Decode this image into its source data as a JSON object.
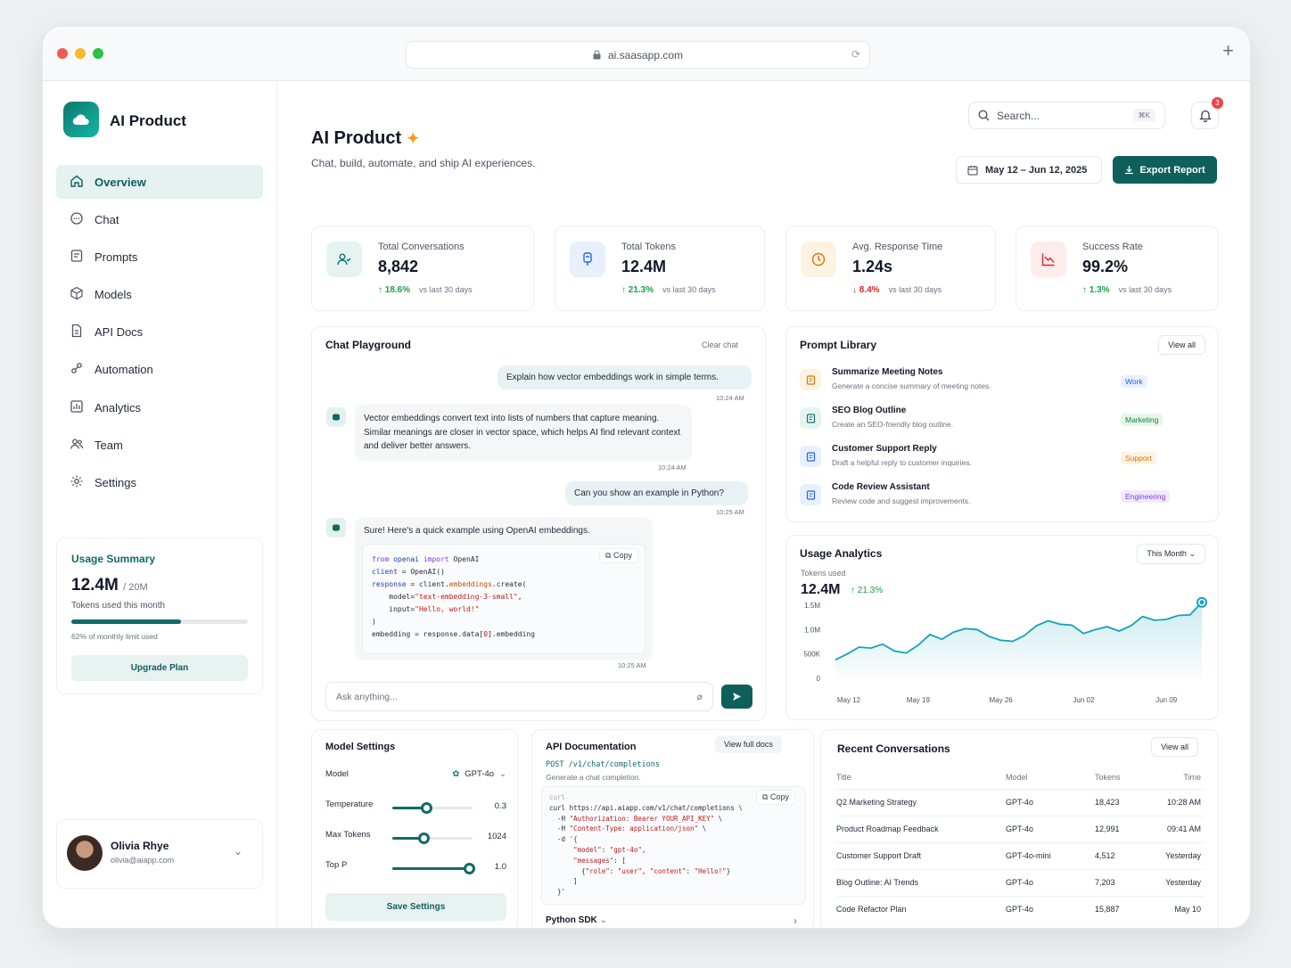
{
  "browser": {
    "url": "ai.saasapp.com"
  },
  "sidebar": {
    "brand": "AI Product",
    "items": [
      {
        "label": "Overview",
        "icon": "home-icon"
      },
      {
        "label": "Chat",
        "icon": "chat-icon"
      },
      {
        "label": "Prompts",
        "icon": "prompt-icon"
      },
      {
        "label": "Models",
        "icon": "cube-icon"
      },
      {
        "label": "API Docs",
        "icon": "doc-icon"
      },
      {
        "label": "Automation",
        "icon": "automation-icon"
      },
      {
        "label": "Analytics",
        "icon": "chart-icon"
      },
      {
        "label": "Team",
        "icon": "team-icon"
      },
      {
        "label": "Settings",
        "icon": "gear-icon"
      }
    ],
    "usage": {
      "title": "Usage Summary",
      "value": "12.4M",
      "limit": "/ 20M",
      "subtitle": "Tokens used this month",
      "progress": 0.62,
      "pct_text": "62% of monthly limit used",
      "button": "Upgrade Plan"
    },
    "user": {
      "name": "Olivia Rhye",
      "email": "olivia@aiapp.com"
    }
  },
  "header": {
    "title": "AI Product",
    "subtitle": "Chat, build, automate, and ship AI experiences.",
    "search_placeholder": "Search...",
    "search_shortcut": "⌘K",
    "notif_count": "3",
    "date_range": "May 12 – Jun 12, 2025",
    "export_label": "Export Report"
  },
  "stats": [
    {
      "label": "Total Conversations",
      "value": "8,842",
      "change": "↑ 18.6%",
      "dir": "up",
      "vs": "vs last 30 days",
      "color": "#0f766e",
      "bg": "#e6f4f1"
    },
    {
      "label": "Total Tokens",
      "value": "12.4M",
      "change": "↑ 21.3%",
      "dir": "up",
      "vs": "vs last 30 days",
      "color": "#2563eb",
      "bg": "#e8f0fd"
    },
    {
      "label": "Avg. Response Time",
      "value": "1.24s",
      "change": "↓ 8.4%",
      "dir": "down",
      "vs": "vs last 30 days",
      "color": "#d97706",
      "bg": "#fdf3e2"
    },
    {
      "label": "Success Rate",
      "value": "99.2%",
      "change": "↑ 1.3%",
      "dir": "up",
      "vs": "vs last 30 days",
      "color": "#dc2626",
      "bg": "#fdecec"
    }
  ],
  "chat": {
    "title": "Chat Playground",
    "clear": "Clear chat",
    "m1": "Explain how vector embeddings work in simple terms.",
    "t1": "10:24 AM",
    "m2": "Vector embeddings convert text into lists of numbers that capture meaning. Similar meanings are closer in vector space, which helps AI find relevant context and deliver better answers.",
    "t2": "10:24 AM",
    "m3": "Can you show an example in Python?",
    "t3": "10:25 AM",
    "m4": "Sure! Here's a quick example using OpenAI embeddings.",
    "copy": "Copy",
    "t4": "10:25 AM",
    "input_placeholder": "Ask anything..."
  },
  "prompts": {
    "title": "Prompt Library",
    "view_all": "View all",
    "items": [
      {
        "title": "Summarize Meeting Notes",
        "desc": "Generate a concise summary of meeting notes.",
        "tag": "Work",
        "tag_color": "#2563eb",
        "tag_bg": "#e8f0fd",
        "icon_bg": "#fdf3e2",
        "icon_color": "#d97706"
      },
      {
        "title": "SEO Blog Outline",
        "desc": "Create an SEO-friendly blog outline.",
        "tag": "Marketing",
        "tag_color": "#15803d",
        "tag_bg": "#e6f6ea",
        "icon_bg": "#e6f4f1",
        "icon_color": "#0f766e"
      },
      {
        "title": "Customer Support Reply",
        "desc": "Draft a helpful reply to customer inquiries.",
        "tag": "Support",
        "tag_color": "#d97706",
        "tag_bg": "#fdf3e2",
        "icon_bg": "#e8f0fd",
        "icon_color": "#2563eb"
      },
      {
        "title": "Code Review Assistant",
        "desc": "Review code and suggest improvements.",
        "tag": "Engineering",
        "tag_color": "#7c3aed",
        "tag_bg": "#f1eafd",
        "icon_bg": "#e8f0fd",
        "icon_color": "#2563eb"
      }
    ]
  },
  "analytics": {
    "title": "Usage Analytics",
    "period": "This Month",
    "sub": "Tokens used",
    "value": "12.4M",
    "change": "↑ 21.3%"
  },
  "chart_data": {
    "type": "area",
    "xlabel": "",
    "ylabel": "",
    "x_ticks": [
      "May 12",
      "May 19",
      "May 26",
      "Jun 02",
      "Jun 09"
    ],
    "y_ticks": [
      "0",
      "500K",
      "1.0M",
      "1.5M"
    ],
    "ylim": [
      0,
      1600000
    ],
    "x": [
      "May 12",
      "May 13",
      "May 14",
      "May 15",
      "May 16",
      "May 17",
      "May 18",
      "May 19",
      "May 20",
      "May 21",
      "May 22",
      "May 23",
      "May 24",
      "May 25",
      "May 26",
      "May 27",
      "May 28",
      "May 29",
      "May 30",
      "May 31",
      "Jun 01",
      "Jun 02",
      "Jun 03",
      "Jun 04",
      "Jun 05",
      "Jun 06",
      "Jun 07",
      "Jun 08",
      "Jun 09",
      "Jun 10",
      "Jun 11",
      "Jun 12"
    ],
    "values": [
      380000,
      500000,
      640000,
      620000,
      700000,
      560000,
      520000,
      680000,
      900000,
      800000,
      950000,
      1020000,
      1000000,
      860000,
      780000,
      760000,
      880000,
      1080000,
      1180000,
      1110000,
      1090000,
      920000,
      1000000,
      1060000,
      970000,
      1080000,
      1270000,
      1190000,
      1210000,
      1290000,
      1300000,
      1560000
    ],
    "color": "#14a3b8"
  },
  "model_settings": {
    "title": "Model Settings",
    "model_label": "Model",
    "model_value": "GPT-4o",
    "rows": [
      {
        "label": "Temperature",
        "value": "0.3",
        "fraction": 0.42
      },
      {
        "label": "Max Tokens",
        "value": "1024",
        "fraction": 0.39
      },
      {
        "label": "Top P",
        "value": "1.0",
        "fraction": 0.95
      }
    ],
    "save": "Save Settings"
  },
  "api_docs": {
    "title": "API Documentation",
    "view_full": "View full docs",
    "endpoint": "POST /v1/chat/completions",
    "desc": "Generate a chat completion.",
    "lang": "curl",
    "copy": "Copy",
    "sdk": "Python SDK"
  },
  "recent": {
    "title": "Recent Conversations",
    "view_all": "View all",
    "columns": [
      "Title",
      "Model",
      "Tokens",
      "Time"
    ],
    "rows": [
      [
        "Q2 Marketing Strategy",
        "GPT-4o",
        "18,423",
        "10:28 AM"
      ],
      [
        "Product Roadmap Feedback",
        "GPT-4o",
        "12,991",
        "09:41 AM"
      ],
      [
        "Customer Support Draft",
        "GPT-4o-mini",
        "4,512",
        "Yesterday"
      ],
      [
        "Blog Outline: AI Trends",
        "GPT-4o",
        "7,203",
        "Yesterday"
      ],
      [
        "Code Refactor Plan",
        "GPT-4o",
        "15,887",
        "May 10"
      ]
    ]
  }
}
